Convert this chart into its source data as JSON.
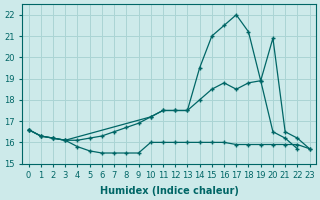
{
  "xlabel": "Humidex (Indice chaleur)",
  "bg_color": "#cdeaea",
  "grid_color": "#aad4d4",
  "line_color": "#006666",
  "xlim": [
    -0.5,
    23.5
  ],
  "ylim": [
    15.0,
    22.5
  ],
  "yticks": [
    15,
    16,
    17,
    18,
    19,
    20,
    21,
    22
  ],
  "xticks": [
    0,
    1,
    2,
    3,
    4,
    5,
    6,
    7,
    8,
    9,
    10,
    11,
    12,
    13,
    14,
    15,
    16,
    17,
    18,
    19,
    20,
    21,
    22,
    23
  ],
  "series": [
    {
      "x": [
        0,
        1,
        2,
        3,
        4,
        5,
        6,
        7,
        8,
        9,
        10,
        11,
        12,
        13,
        14,
        15,
        16,
        17,
        18,
        19,
        20,
        21,
        22,
        23
      ],
      "y": [
        16.6,
        16.3,
        16.2,
        16.1,
        15.8,
        15.6,
        15.5,
        15.5,
        15.5,
        15.5,
        16.0,
        16.0,
        16.0,
        16.0,
        16.0,
        16.0,
        16.0,
        15.9,
        15.9,
        15.9,
        15.9,
        15.9,
        15.9,
        15.7
      ]
    },
    {
      "x": [
        0,
        1,
        2,
        3,
        4,
        5,
        6,
        7,
        8,
        9,
        10,
        11,
        12,
        13,
        14,
        15,
        16,
        17,
        18,
        19,
        20,
        21,
        22
      ],
      "y": [
        16.6,
        16.3,
        16.2,
        16.1,
        16.1,
        16.2,
        16.3,
        16.5,
        16.7,
        16.9,
        17.2,
        17.5,
        17.5,
        17.5,
        18.0,
        18.5,
        18.8,
        18.5,
        18.8,
        18.9,
        16.5,
        16.2,
        15.7
      ]
    },
    {
      "x": [
        0,
        1,
        2,
        3,
        10,
        11,
        12,
        13,
        14,
        15,
        16,
        17,
        18,
        19,
        20,
        21,
        22,
        23
      ],
      "y": [
        16.6,
        16.3,
        16.2,
        16.1,
        17.2,
        17.5,
        17.5,
        17.5,
        19.5,
        21.0,
        21.5,
        22.0,
        21.2,
        18.9,
        20.9,
        16.5,
        16.2,
        15.7
      ]
    }
  ]
}
